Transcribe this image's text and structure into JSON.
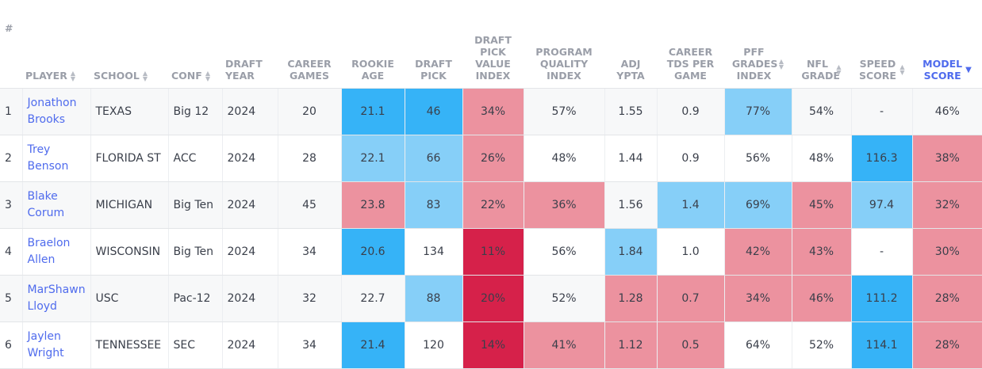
{
  "columns": [
    {
      "key": "rank",
      "label": "#"
    },
    {
      "key": "player",
      "label": "PLAYER"
    },
    {
      "key": "school",
      "label": "SCHOOL"
    },
    {
      "key": "conf",
      "label": "CONF"
    },
    {
      "key": "draft_year",
      "label": "DRAFT YEAR"
    },
    {
      "key": "career_games",
      "label": "CAREER GAMES"
    },
    {
      "key": "rookie_age",
      "label": "ROOKIE AGE"
    },
    {
      "key": "draft_pick",
      "label": "DRAFT PICK"
    },
    {
      "key": "dpvi",
      "label": "DRAFT PICK VALUE INDEX"
    },
    {
      "key": "pqi",
      "label": "PROGRAM QUALITY INDEX"
    },
    {
      "key": "adj_ypta",
      "label": "ADJ YPTA"
    },
    {
      "key": "career_tds",
      "label": "CAREER TDS PER GAME"
    },
    {
      "key": "pff",
      "label": "PFF GRADES INDEX"
    },
    {
      "key": "nfl_grade",
      "label": "NFL GRADE"
    },
    {
      "key": "speed",
      "label": "SPEED SCORE"
    },
    {
      "key": "model",
      "label": "MODEL SCORE"
    }
  ],
  "colors": {
    "dark_blue": "#36b3f7",
    "light_blue": "#86cff8",
    "pink": "#ec929f",
    "red": "#d6214a",
    "link": "#4f6bed"
  },
  "rows": [
    {
      "rank": "1",
      "player_first": "Jonathon",
      "player_last": "Brooks",
      "school": "TEXAS",
      "conf": "Big 12",
      "draft_year": "2024",
      "career_games": "20",
      "rookie_age": "21.1",
      "draft_pick": "46",
      "dpvi": "34%",
      "pqi": "57%",
      "adj_ypta": "1.55",
      "career_tds": "0.9",
      "pff": "77%",
      "nfl_grade": "54%",
      "speed": "-",
      "model": "46%"
    },
    {
      "rank": "2",
      "player_first": "Trey",
      "player_last": "Benson",
      "school": "FLORIDA ST",
      "conf": "ACC",
      "draft_year": "2024",
      "career_games": "28",
      "rookie_age": "22.1",
      "draft_pick": "66",
      "dpvi": "26%",
      "pqi": "48%",
      "adj_ypta": "1.44",
      "career_tds": "0.9",
      "pff": "56%",
      "nfl_grade": "48%",
      "speed": "116.3",
      "model": "38%"
    },
    {
      "rank": "3",
      "player_first": "Blake",
      "player_last": "Corum",
      "school": "MICHIGAN",
      "conf": "Big Ten",
      "draft_year": "2024",
      "career_games": "45",
      "rookie_age": "23.8",
      "draft_pick": "83",
      "dpvi": "22%",
      "pqi": "36%",
      "adj_ypta": "1.56",
      "career_tds": "1.4",
      "pff": "69%",
      "nfl_grade": "45%",
      "speed": "97.4",
      "model": "32%"
    },
    {
      "rank": "4",
      "player_first": "Braelon",
      "player_last": "Allen",
      "school": "WISCONSIN",
      "conf": "Big Ten",
      "draft_year": "2024",
      "career_games": "34",
      "rookie_age": "20.6",
      "draft_pick": "134",
      "dpvi": "11%",
      "pqi": "56%",
      "adj_ypta": "1.84",
      "career_tds": "1.0",
      "pff": "42%",
      "nfl_grade": "43%",
      "speed": "-",
      "model": "30%"
    },
    {
      "rank": "5",
      "player_first": "MarShawn",
      "player_last": "Lloyd",
      "school": "USC",
      "conf": "Pac-12",
      "draft_year": "2024",
      "career_games": "32",
      "rookie_age": "22.7",
      "draft_pick": "88",
      "dpvi": "20%",
      "pqi": "52%",
      "adj_ypta": "1.28",
      "career_tds": "0.7",
      "pff": "34%",
      "nfl_grade": "46%",
      "speed": "111.2",
      "model": "28%"
    },
    {
      "rank": "6",
      "player_first": "Jaylen",
      "player_last": "Wright",
      "school": "TENNESSEE",
      "conf": "SEC",
      "draft_year": "2024",
      "career_games": "34",
      "rookie_age": "21.4",
      "draft_pick": "120",
      "dpvi": "14%",
      "pqi": "41%",
      "adj_ypta": "1.12",
      "career_tds": "0.5",
      "pff": "64%",
      "nfl_grade": "52%",
      "speed": "114.1",
      "model": "28%"
    }
  ]
}
